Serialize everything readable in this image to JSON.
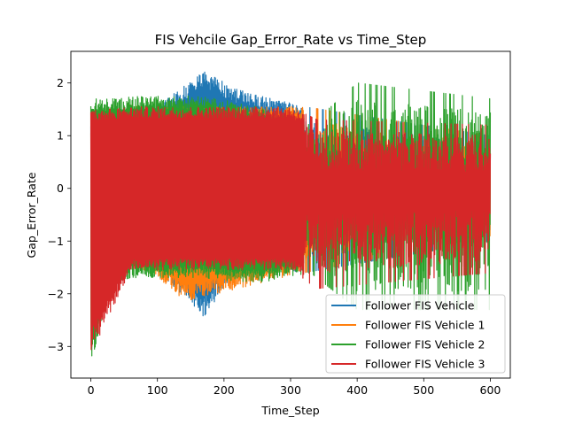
{
  "chart_data": {
    "type": "line",
    "title": "FIS Vehcile Gap_Error_Rate vs Time_Step",
    "xlabel": "Time_Step",
    "ylabel": "Gap_Error_Rate",
    "xlim": [
      -30,
      630
    ],
    "ylim": [
      -3.6,
      2.6
    ],
    "x_ticks": [
      0,
      100,
      200,
      300,
      400,
      500,
      600
    ],
    "x_tick_labels": [
      "0",
      "100",
      "200",
      "300",
      "400",
      "500",
      "600"
    ],
    "y_ticks": [
      -3,
      -2,
      -1,
      0,
      1,
      2
    ],
    "y_tick_labels": [
      "−3",
      "−2",
      "−1",
      "0",
      "1",
      "2"
    ],
    "legend_position": "lower-right",
    "grid": false,
    "series": [
      {
        "name": "Follower FIS Vehicle",
        "color": "#1f77b4",
        "x_range": [
          0,
          600
        ],
        "envelope": [
          {
            "x": 0,
            "hi": 1.2,
            "lo": -3.1
          },
          {
            "x": 10,
            "hi": 1.5,
            "lo": -2.2
          },
          {
            "x": 40,
            "hi": 1.5,
            "lo": -1.3
          },
          {
            "x": 60,
            "hi": 1.5,
            "lo": -1.5
          },
          {
            "x": 100,
            "hi": 1.55,
            "lo": -1.55
          },
          {
            "x": 170,
            "hi": 2.25,
            "lo": -2.45
          },
          {
            "x": 215,
            "hi": 1.9,
            "lo": -1.6
          },
          {
            "x": 320,
            "hi": 1.55,
            "lo": -1.6
          },
          {
            "x": 600,
            "hi": 1.0,
            "lo": -1.0
          }
        ]
      },
      {
        "name": "Follower FIS Vehicle 1",
        "color": "#ff7f0e",
        "x_range": [
          0,
          600
        ],
        "envelope": [
          {
            "x": 0,
            "hi": 1.2,
            "lo": -3.0
          },
          {
            "x": 25,
            "hi": 1.55,
            "lo": -1.7
          },
          {
            "x": 45,
            "hi": 1.6,
            "lo": -1.3
          },
          {
            "x": 100,
            "hi": 1.55,
            "lo": -1.7
          },
          {
            "x": 140,
            "hi": 1.55,
            "lo": -2.15
          },
          {
            "x": 320,
            "hi": 1.55,
            "lo": -1.6
          },
          {
            "x": 600,
            "hi": 1.0,
            "lo": -0.9
          }
        ]
      },
      {
        "name": "Follower FIS Vehicle 2",
        "color": "#2ca02c",
        "x_range": [
          0,
          600
        ],
        "envelope": [
          {
            "x": 0,
            "hi": 1.7,
            "lo": -3.35
          },
          {
            "x": 30,
            "hi": 1.7,
            "lo": -1.8
          },
          {
            "x": 60,
            "hi": 1.75,
            "lo": -1.7
          },
          {
            "x": 170,
            "hi": 1.75,
            "lo": -1.7
          },
          {
            "x": 250,
            "hi": 1.55,
            "lo": -1.8
          },
          {
            "x": 330,
            "hi": 1.2,
            "lo": -1.6
          },
          {
            "x": 400,
            "hi": 2.0,
            "lo": -2.3
          },
          {
            "x": 600,
            "hi": 1.7,
            "lo": -2.3
          }
        ]
      },
      {
        "name": "Follower FIS Vehicle 3",
        "color": "#d62728",
        "x_range": [
          0,
          600
        ],
        "envelope": [
          {
            "x": 0,
            "hi": 1.5,
            "lo": -3.15
          },
          {
            "x": 60,
            "hi": 1.55,
            "lo": -1.55
          },
          {
            "x": 300,
            "hi": 1.55,
            "lo": -1.55
          },
          {
            "x": 340,
            "hi": 1.3,
            "lo": -1.9
          },
          {
            "x": 600,
            "hi": 1.2,
            "lo": -1.6
          }
        ]
      }
    ]
  }
}
